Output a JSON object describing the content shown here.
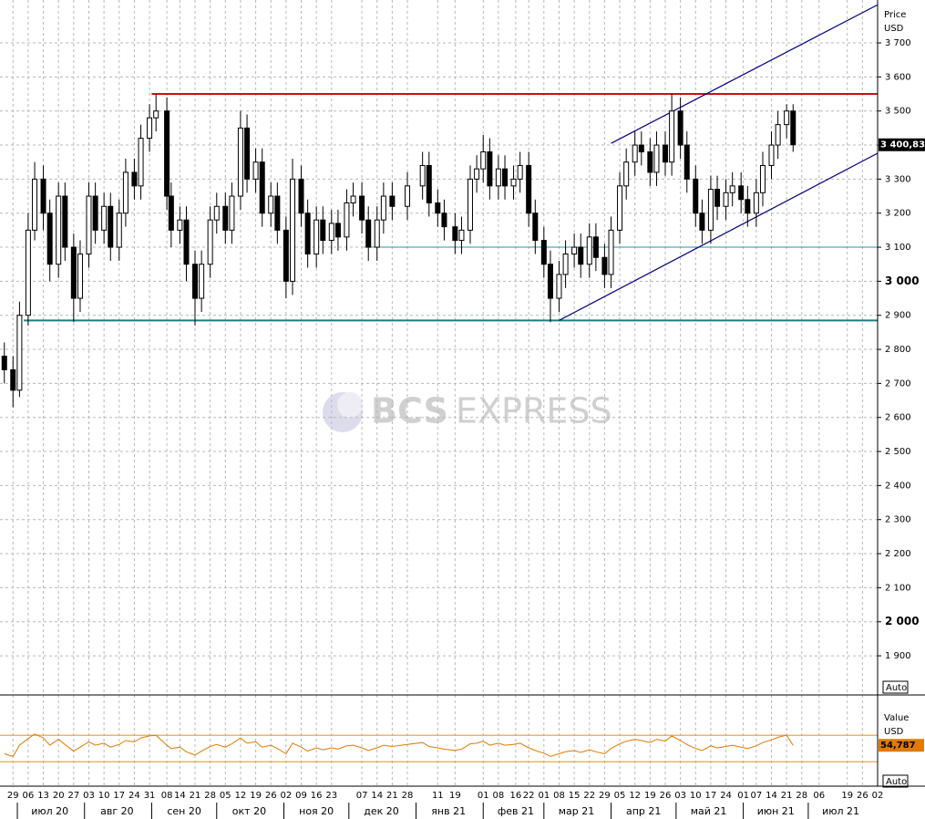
{
  "chart_data": [
    {
      "type": "candlestick",
      "axis_labels": [
        "Price",
        "USD"
      ],
      "scale_mode": "Auto",
      "watermark": [
        "BCS",
        "EXPRESS"
      ],
      "xlim": [
        "2020-06-23",
        "2021-08-02"
      ],
      "ylim": [
        1785,
        3826
      ],
      "yticks": [
        {
          "value": 1900,
          "label": "1 900"
        },
        {
          "value": 2000,
          "label": "2 000"
        },
        {
          "value": 2100,
          "label": "2 100"
        },
        {
          "value": 2200,
          "label": "2 200"
        },
        {
          "value": 2300,
          "label": "2 300"
        },
        {
          "value": 2400,
          "label": "2 400"
        },
        {
          "value": 2500,
          "label": "2 500"
        },
        {
          "value": 2600,
          "label": "2 600"
        },
        {
          "value": 2700,
          "label": "2 700"
        },
        {
          "value": 2800,
          "label": "2 800"
        },
        {
          "value": 2900,
          "label": "2 900"
        },
        {
          "value": 3000,
          "label": "3 000"
        },
        {
          "value": 3100,
          "label": "3 100"
        },
        {
          "value": 3200,
          "label": "3 200"
        },
        {
          "value": 3300,
          "label": "3 300"
        },
        {
          "value": 3400,
          "label": "3 400"
        },
        {
          "value": 3500,
          "label": "3 500"
        },
        {
          "value": 3600,
          "label": "3 600"
        },
        {
          "value": 3700,
          "label": "3 700"
        }
      ],
      "xticks": [
        {
          "value": "2020-06-29",
          "label": "29"
        },
        {
          "value": "2020-07-06",
          "label": "06"
        },
        {
          "value": "2020-07-13",
          "label": "13"
        },
        {
          "value": "2020-07-20",
          "label": "20"
        },
        {
          "value": "2020-07-27",
          "label": "27"
        },
        {
          "value": "2020-08-03",
          "label": "03"
        },
        {
          "value": "2020-08-10",
          "label": "10"
        },
        {
          "value": "2020-08-17",
          "label": "17"
        },
        {
          "value": "2020-08-24",
          "label": "24"
        },
        {
          "value": "2020-08-31",
          "label": "31"
        },
        {
          "value": "2020-09-08",
          "label": "08"
        },
        {
          "value": "2020-09-14",
          "label": "14"
        },
        {
          "value": "2020-09-21",
          "label": "21"
        },
        {
          "value": "2020-09-28",
          "label": "28"
        },
        {
          "value": "2020-10-05",
          "label": "05"
        },
        {
          "value": "2020-10-12",
          "label": "12"
        },
        {
          "value": "2020-10-19",
          "label": "19"
        },
        {
          "value": "2020-10-26",
          "label": "26"
        },
        {
          "value": "2020-11-02",
          "label": "02"
        },
        {
          "value": "2020-11-09",
          "label": "09"
        },
        {
          "value": "2020-11-16",
          "label": "16"
        },
        {
          "value": "2020-11-23",
          "label": "23"
        },
        {
          "value": "2020-12-07",
          "label": "07"
        },
        {
          "value": "2020-12-14",
          "label": "14"
        },
        {
          "value": "2020-12-21",
          "label": "21"
        },
        {
          "value": "2020-12-28",
          "label": "28"
        },
        {
          "value": "2021-01-11",
          "label": "11"
        },
        {
          "value": "2021-01-19",
          "label": "19"
        },
        {
          "value": "2021-02-01",
          "label": "01"
        },
        {
          "value": "2021-02-08",
          "label": "08"
        },
        {
          "value": "2021-02-16",
          "label": "16"
        },
        {
          "value": "2021-02-22",
          "label": "22"
        },
        {
          "value": "2021-03-01",
          "label": "01"
        },
        {
          "value": "2021-03-08",
          "label": "08"
        },
        {
          "value": "2021-03-15",
          "label": "15"
        },
        {
          "value": "2021-03-22",
          "label": "22"
        },
        {
          "value": "2021-03-29",
          "label": "29"
        },
        {
          "value": "2021-04-05",
          "label": "05"
        },
        {
          "value": "2021-04-12",
          "label": "12"
        },
        {
          "value": "2021-04-19",
          "label": "19"
        },
        {
          "value": "2021-04-26",
          "label": "26"
        },
        {
          "value": "2021-05-03",
          "label": "03"
        },
        {
          "value": "2021-05-10",
          "label": "10"
        },
        {
          "value": "2021-05-17",
          "label": "17"
        },
        {
          "value": "2021-05-24",
          "label": "24"
        },
        {
          "value": "2021-06-01",
          "label": "01"
        },
        {
          "value": "2021-06-07",
          "label": "07"
        },
        {
          "value": "2021-06-14",
          "label": "14"
        },
        {
          "value": "2021-06-21",
          "label": "21"
        },
        {
          "value": "2021-06-28",
          "label": "28"
        },
        {
          "value": "2021-07-06",
          "label": "06"
        },
        {
          "value": "2021-07-19",
          "label": "19"
        },
        {
          "value": "2021-07-26",
          "label": "26"
        },
        {
          "value": "2021-08-02",
          "label": "02"
        }
      ],
      "month_ticks": [
        {
          "value": "2020-07-01",
          "label": "июл 20"
        },
        {
          "value": "2020-08-01",
          "label": "авг 20"
        },
        {
          "value": "2020-09-01",
          "label": "сен 20"
        },
        {
          "value": "2020-10-01",
          "label": "окт 20"
        },
        {
          "value": "2020-11-01",
          "label": "ноя 20"
        },
        {
          "value": "2020-12-01",
          "label": "дек 20"
        },
        {
          "value": "2021-01-01",
          "label": "янв 21"
        },
        {
          "value": "2021-02-01",
          "label": "фев 21"
        },
        {
          "value": "2021-03-01",
          "label": "мар 21"
        },
        {
          "value": "2021-04-01",
          "label": "апр 21"
        },
        {
          "value": "2021-05-01",
          "label": "май 21"
        },
        {
          "value": "2021-06-01",
          "label": "июн 21"
        },
        {
          "value": "2021-07-01",
          "label": "июл 21"
        }
      ],
      "grid": true,
      "up_color": "#ffffff",
      "down_color": "#000000",
      "x": [
        "2020-06-25",
        "2020-06-29",
        "2020-07-02",
        "2020-07-06",
        "2020-07-09",
        "2020-07-13",
        "2020-07-16",
        "2020-07-20",
        "2020-07-23",
        "2020-07-27",
        "2020-07-30",
        "2020-08-03",
        "2020-08-06",
        "2020-08-10",
        "2020-08-13",
        "2020-08-17",
        "2020-08-20",
        "2020-08-24",
        "2020-08-27",
        "2020-08-31",
        "2020-09-03",
        "2020-09-08",
        "2020-09-10",
        "2020-09-14",
        "2020-09-17",
        "2020-09-21",
        "2020-09-24",
        "2020-09-28",
        "2020-10-01",
        "2020-10-05",
        "2020-10-08",
        "2020-10-12",
        "2020-10-15",
        "2020-10-19",
        "2020-10-22",
        "2020-10-26",
        "2020-10-29",
        "2020-11-02",
        "2020-11-05",
        "2020-11-09",
        "2020-11-12",
        "2020-11-16",
        "2020-11-19",
        "2020-11-23",
        "2020-11-26",
        "2020-11-30",
        "2020-12-03",
        "2020-12-07",
        "2020-12-10",
        "2020-12-14",
        "2020-12-17",
        "2020-12-21",
        "2020-12-28",
        "2021-01-04",
        "2021-01-07",
        "2021-01-11",
        "2021-01-14",
        "2021-01-19",
        "2021-01-22",
        "2021-01-26",
        "2021-01-29",
        "2021-02-01",
        "2021-02-04",
        "2021-02-08",
        "2021-02-11",
        "2021-02-15",
        "2021-02-18",
        "2021-02-22",
        "2021-02-25",
        "2021-03-01",
        "2021-03-04",
        "2021-03-08",
        "2021-03-11",
        "2021-03-15",
        "2021-03-18",
        "2021-03-22",
        "2021-03-25",
        "2021-03-29",
        "2021-04-01",
        "2021-04-05",
        "2021-04-08",
        "2021-04-12",
        "2021-04-15",
        "2021-04-19",
        "2021-04-22",
        "2021-04-26",
        "2021-04-29",
        "2021-05-03",
        "2021-05-06",
        "2021-05-10",
        "2021-05-13",
        "2021-05-17",
        "2021-05-20",
        "2021-05-24",
        "2021-05-27",
        "2021-05-31",
        "2021-06-03",
        "2021-06-07",
        "2021-06-10",
        "2021-06-14",
        "2021-06-17",
        "2021-06-21",
        "2021-06-24"
      ],
      "open": [
        2780,
        2740,
        2680,
        2900,
        3150,
        3300,
        3200,
        3050,
        3250,
        3100,
        2950,
        3080,
        3250,
        3150,
        3220,
        3100,
        3200,
        3320,
        3280,
        3420,
        3480,
        3500,
        3250,
        3150,
        3180,
        3050,
        2950,
        3050,
        3180,
        3220,
        3150,
        3250,
        3450,
        3300,
        3350,
        3200,
        3250,
        3150,
        3000,
        3300,
        3200,
        3080,
        3180,
        3120,
        3170,
        3130,
        3230,
        3250,
        3180,
        3100,
        3180,
        3250,
        3220,
        3280,
        3340,
        3230,
        3200,
        3160,
        3120,
        3150,
        3300,
        3330,
        3380,
        3280,
        3330,
        3280,
        3300,
        3340,
        3200,
        3120,
        3050,
        2950,
        3020,
        3080,
        3100,
        3050,
        3130,
        3070,
        3020,
        3150,
        3280,
        3350,
        3400,
        3380,
        3320,
        3400,
        3350,
        3500,
        3400,
        3300,
        3200,
        3150,
        3270,
        3220,
        3260,
        3280,
        3240,
        3200,
        3260,
        3340,
        3400,
        3460,
        3500
      ],
      "high": [
        2820,
        2780,
        2940,
        3200,
        3350,
        3340,
        3240,
        3290,
        3290,
        3140,
        3120,
        3290,
        3290,
        3260,
        3260,
        3240,
        3360,
        3360,
        3460,
        3520,
        3550,
        3540,
        3290,
        3220,
        3220,
        3090,
        3090,
        3220,
        3260,
        3260,
        3290,
        3500,
        3490,
        3390,
        3390,
        3290,
        3290,
        3190,
        3360,
        3340,
        3240,
        3220,
        3220,
        3210,
        3210,
        3270,
        3290,
        3290,
        3220,
        3220,
        3290,
        3290,
        3320,
        3380,
        3380,
        3270,
        3240,
        3200,
        3190,
        3340,
        3370,
        3430,
        3420,
        3370,
        3370,
        3340,
        3380,
        3380,
        3240,
        3160,
        3090,
        3060,
        3120,
        3140,
        3140,
        3170,
        3170,
        3110,
        3190,
        3320,
        3390,
        3440,
        3440,
        3420,
        3440,
        3440,
        3550,
        3540,
        3440,
        3340,
        3240,
        3310,
        3310,
        3300,
        3320,
        3320,
        3280,
        3300,
        3380,
        3440,
        3500,
        3520,
        3520
      ],
      "low": [
        2700,
        2630,
        2660,
        2870,
        3120,
        3150,
        3000,
        3010,
        3060,
        2880,
        2910,
        3040,
        3110,
        3110,
        3060,
        3060,
        3160,
        3240,
        3240,
        3380,
        3440,
        3210,
        3100,
        3110,
        3000,
        2870,
        2910,
        3010,
        3140,
        3110,
        3110,
        3210,
        3260,
        3260,
        3160,
        3160,
        3110,
        2950,
        2960,
        3160,
        3040,
        3040,
        3080,
        3080,
        3090,
        3090,
        3190,
        3140,
        3060,
        3060,
        3140,
        3180,
        3180,
        3240,
        3190,
        3160,
        3120,
        3080,
        3080,
        3110,
        3260,
        3290,
        3240,
        3240,
        3240,
        3240,
        3260,
        3160,
        3080,
        3010,
        2880,
        2910,
        2980,
        3040,
        3010,
        3010,
        3030,
        2980,
        2980,
        3110,
        3240,
        3310,
        3340,
        3280,
        3280,
        3310,
        3310,
        3360,
        3260,
        3160,
        3110,
        3110,
        3180,
        3180,
        3220,
        3200,
        3160,
        3160,
        3220,
        3300,
        3360,
        3420,
        3380
      ],
      "close": [
        2740,
        2680,
        2900,
        3150,
        3300,
        3200,
        3050,
        3250,
        3100,
        2950,
        3080,
        3250,
        3150,
        3220,
        3100,
        3200,
        3320,
        3280,
        3420,
        3480,
        3500,
        3250,
        3150,
        3180,
        3050,
        2950,
        3050,
        3180,
        3220,
        3150,
        3250,
        3450,
        3300,
        3350,
        3200,
        3250,
        3150,
        3000,
        3300,
        3200,
        3080,
        3180,
        3120,
        3170,
        3130,
        3230,
        3250,
        3180,
        3100,
        3180,
        3250,
        3220,
        3280,
        3340,
        3230,
        3200,
        3160,
        3120,
        3150,
        3300,
        3330,
        3380,
        3280,
        3330,
        3280,
        3300,
        3340,
        3200,
        3120,
        3050,
        2950,
        3020,
        3080,
        3100,
        3050,
        3130,
        3070,
        3020,
        3150,
        3280,
        3350,
        3400,
        3380,
        3320,
        3400,
        3350,
        3500,
        3400,
        3300,
        3200,
        3150,
        3270,
        3220,
        3260,
        3280,
        3240,
        3200,
        3260,
        3340,
        3400,
        3460,
        3500,
        3400.83
      ],
      "last_price": {
        "value": 3400.83,
        "label": "3 400,830"
      },
      "levels": [
        {
          "value": 3550,
          "from": "2020-09-01",
          "color": "#cc1010"
        },
        {
          "value": 2885,
          "from": "2020-07-04",
          "color": "#1a7f7f"
        },
        {
          "value": 3100,
          "from": "2020-12-08",
          "color": "#2a9a9a"
        }
      ],
      "trendlines": [
        {
          "x": [
            "2021-03-08",
            "2021-08-02"
          ],
          "y": [
            2885,
            3376
          ],
          "color": "#000080"
        },
        {
          "x": [
            "2021-04-01",
            "2021-08-02"
          ],
          "y": [
            3405,
            3812
          ],
          "color": "#000080"
        }
      ]
    },
    {
      "type": "line",
      "axis_labels": [
        "Value",
        "USD"
      ],
      "scale_mode": "Auto",
      "color": "#e07b00",
      "ylim": [
        -7,
        131
      ],
      "levels": [
        70,
        30
      ],
      "level_color": "#e0a030",
      "values": [
        42,
        38,
        55,
        65,
        72,
        66,
        55,
        64,
        56,
        46,
        52,
        60,
        55,
        58,
        52,
        56,
        62,
        60,
        66,
        69,
        70,
        55,
        50,
        52,
        45,
        40,
        46,
        53,
        56,
        52,
        57,
        66,
        58,
        60,
        52,
        55,
        50,
        42,
        58,
        52,
        46,
        51,
        48,
        51,
        49,
        54,
        55,
        51,
        47,
        51,
        55,
        53,
        56,
        59,
        53,
        51,
        49,
        47,
        49,
        57,
        58,
        61,
        55,
        58,
        55,
        56,
        58,
        51,
        47,
        43,
        38,
        42,
        45,
        47,
        44,
        48,
        45,
        42,
        50,
        57,
        61,
        64,
        62,
        59,
        64,
        61,
        69,
        62,
        56,
        50,
        47,
        54,
        51,
        53,
        55,
        52,
        50,
        54,
        59,
        63,
        67,
        70,
        54.787
      ],
      "last_label": {
        "value": 54.787,
        "label": "54,787"
      }
    }
  ]
}
